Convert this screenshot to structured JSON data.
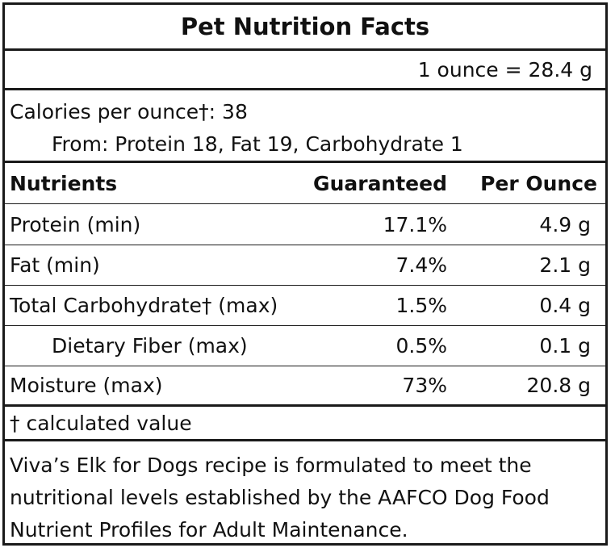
{
  "label": {
    "title": "Pet Nutrition Facts",
    "serving": "1 ounce = 28.4 g",
    "calories": "Calories per ounce†: 38",
    "calories_from": "From: Protein 18, Fat 19, Carbohydrate 1",
    "columns": {
      "nutrients": "Nutrients",
      "guaranteed": "Guaranteed",
      "per_ounce": "Per Ounce"
    },
    "rows": [
      {
        "name": "Protein (min)",
        "guaranteed": "17.1%",
        "per_ounce": "4.9 g"
      },
      {
        "name": "Fat (min)",
        "guaranteed": "7.4%",
        "per_ounce": "2.1 g"
      },
      {
        "name": "Total Carbohydrate† (max)",
        "guaranteed": "1.5%",
        "per_ounce": "0.4 g"
      },
      {
        "name": "Dietary Fiber (max)",
        "guaranteed": "0.5%",
        "per_ounce": "0.1 g"
      },
      {
        "name": "Moisture (max)",
        "guaranteed": "73%",
        "per_ounce": "20.8 g"
      }
    ],
    "footnote": "† calculated value",
    "statement": "Viva’s Elk for Dogs recipe is formulated to meet the nutritional levels established by the AAFCO Dog Food Nutrient Profiles for Adult Maintenance."
  }
}
